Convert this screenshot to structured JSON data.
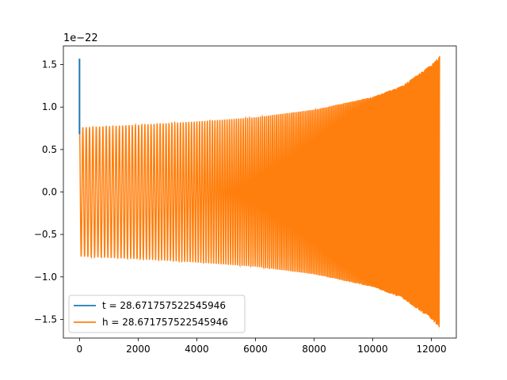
{
  "chart_data": {
    "type": "line",
    "title": "",
    "xlabel": "",
    "ylabel": "",
    "y_scale_label": "1e−22",
    "xlim": [
      -550,
      12850
    ],
    "ylim": [
      -1.72,
      1.72
    ],
    "x_ticks": [
      0,
      2000,
      4000,
      6000,
      8000,
      10000,
      12000
    ],
    "x_tick_labels": [
      "0",
      "2000",
      "4000",
      "6000",
      "8000",
      "10000",
      "12000"
    ],
    "y_ticks": [
      -1.5,
      -1.0,
      -0.5,
      0.0,
      0.5,
      1.0,
      1.5
    ],
    "y_tick_labels": [
      "−1.5",
      "−1.0",
      "−0.5",
      "0.0",
      "0.5",
      "1.0",
      "1.5"
    ],
    "grid": false,
    "legend_position": "lower-left",
    "series": [
      {
        "name": "t = 28.671757522545946",
        "color": "#1f77b4",
        "description": "spike near x=0",
        "x": [
          0,
          0,
          0
        ],
        "y": [
          0.68,
          1.57,
          0.68
        ]
      },
      {
        "name": "h = 28.671757522545946",
        "color": "#ff7f0e",
        "description": "chirp oscillation, amplitude growing with x",
        "x_range": [
          0,
          12280
        ],
        "envelope": {
          "x": [
            0,
            2000,
            4000,
            6000,
            8000,
            10000,
            11000,
            12000,
            12280
          ],
          "amplitude": [
            0.76,
            0.79,
            0.83,
            0.88,
            0.97,
            1.12,
            1.25,
            1.5,
            1.6
          ]
        },
        "cycles": 195
      }
    ]
  }
}
